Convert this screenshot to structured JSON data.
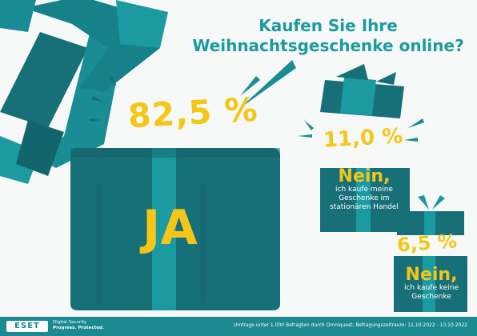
{
  "headline": {
    "line1": "Kaufen Sie Ihre",
    "line2": "Weihnachtsgeschenke online?"
  },
  "answers": {
    "yes": {
      "percent": "82,5 %",
      "label": "JA"
    },
    "store": {
      "percent": "11,0 %",
      "title": "Nein,",
      "text": "ich kaufe meine Geschenke im stationären Handel"
    },
    "none": {
      "percent": "6,5 %",
      "title": "Nein,",
      "text": "ich kaufe keine Geschenke"
    }
  },
  "brand": {
    "logo": "ESET",
    "tagline1": "Digital Security",
    "tagline2": "Progress. Protected."
  },
  "footer_note": "Umfrage unter 1.000 Befragten durch Omniquest; Befragungszeitraum: 11.10.2022 - 13.10.2022",
  "colors": {
    "teal": "#1b9aa0",
    "dark_teal": "#166f77",
    "yellow": "#f5c518"
  }
}
